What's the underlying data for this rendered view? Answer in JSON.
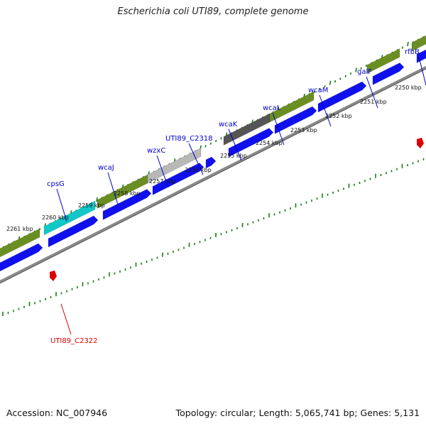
{
  "title": "Escherichia coli UTI89, complete genome",
  "footer": {
    "accession": "Accession: NC_007946",
    "summary": "Topology: circular; Length: 5,065,741 bp; Genes: 5,131"
  },
  "ruler": [
    {
      "label": "2250 kbp",
      "pos": 2250
    },
    {
      "label": "2251 kbp",
      "pos": 2251
    },
    {
      "label": "2252 kbp",
      "pos": 2252
    },
    {
      "label": "2253 kbp",
      "pos": 2253
    },
    {
      "label": "2254 kbp",
      "pos": 2254
    },
    {
      "label": "2255 kbp",
      "pos": 2255
    },
    {
      "label": "2256 kbp",
      "pos": 2256
    },
    {
      "label": "2257 kbp",
      "pos": 2257
    },
    {
      "label": "2258 kbp",
      "pos": 2258
    },
    {
      "label": "2259 kbp",
      "pos": 2259
    },
    {
      "label": "2260 kbp",
      "pos": 2260
    },
    {
      "label": "2261 kbp",
      "pos": 2261
    }
  ],
  "gene_labels": [
    {
      "name": "rfbB",
      "color": "#0000cc"
    },
    {
      "name": "galF",
      "color": "#0000cc"
    },
    {
      "name": "wcaM",
      "color": "#0000cc"
    },
    {
      "name": "wcaL",
      "color": "#0000cc"
    },
    {
      "name": "wcaK",
      "color": "#0000cc"
    },
    {
      "name": "UTI89_C2318",
      "color": "#0000cc"
    },
    {
      "name": "wzxC",
      "color": "#0000cc"
    },
    {
      "name": "wcaJ",
      "color": "#0000cc"
    },
    {
      "name": "cpsG",
      "color": "#0000cc"
    },
    {
      "name": "UTI89_C2322",
      "color": "#dd0000"
    }
  ],
  "colors": {
    "cds": "#1010ee",
    "feature_olive": "#6b8e23",
    "feature_cyan": "#10c8c8",
    "feature_gray_light": "#b8b8b8",
    "feature_gray_dark": "#555555",
    "backbone": "#8a8a8a",
    "ticks": "#1a7a1a",
    "marker": "#dd0000"
  }
}
